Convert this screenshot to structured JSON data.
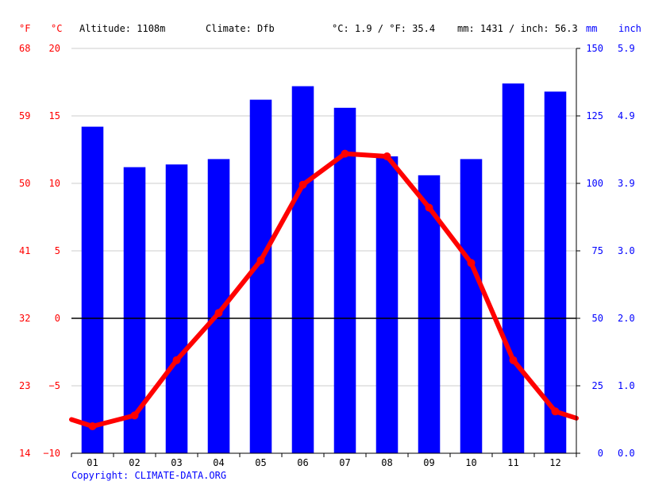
{
  "header": {
    "unit_f": "°F",
    "unit_c": "°C",
    "altitude": "Altitude: 1108m",
    "climate": "Climate: Dfb",
    "temp_avg": "°C: 1.9 / °F: 35.4",
    "precip_total": "mm: 1431 / inch: 56.3",
    "unit_mm": "mm",
    "unit_inch": "inch"
  },
  "footer": {
    "copyright": "Copyright: CLIMATE-DATA.ORG"
  },
  "colors": {
    "temperature": "#ff0000",
    "precipitation": "#0000ff",
    "zero_line": "#000000",
    "grid": "#cccccc"
  },
  "chart_data": {
    "type": "bar+line",
    "categories": [
      "01",
      "02",
      "03",
      "04",
      "05",
      "06",
      "07",
      "08",
      "09",
      "10",
      "11",
      "12"
    ],
    "series": [
      {
        "unit": "mm",
        "values": [
          121,
          106,
          107,
          109,
          131,
          136,
          128,
          110,
          103,
          109,
          137,
          134
        ]
      },
      {
        "unit": "°C",
        "values": [
          -8.0,
          -7.2,
          -3.1,
          0.4,
          4.3,
          9.9,
          12.2,
          12.0,
          8.2,
          4.1,
          -3.1,
          -6.9
        ],
        "start_value": -7.5,
        "end_value": -7.4
      }
    ],
    "y_left_celsius": {
      "ticks": [
        "20",
        "15",
        "10",
        "5",
        "0",
        "−5",
        "−10"
      ],
      "range": [
        -10,
        20
      ]
    },
    "y_left_fahrenheit": {
      "ticks": [
        "68",
        "59",
        "50",
        "41",
        "32",
        "23",
        "14"
      ]
    },
    "y_right_mm": {
      "ticks": [
        "150",
        "125",
        "100",
        "75",
        "50",
        "25",
        "0"
      ],
      "range": [
        0,
        150
      ]
    },
    "y_right_inch": {
      "ticks": [
        "5.9",
        "4.9",
        "3.9",
        "3.0",
        "2.0",
        "1.0",
        "0.0"
      ]
    },
    "grid": true
  }
}
